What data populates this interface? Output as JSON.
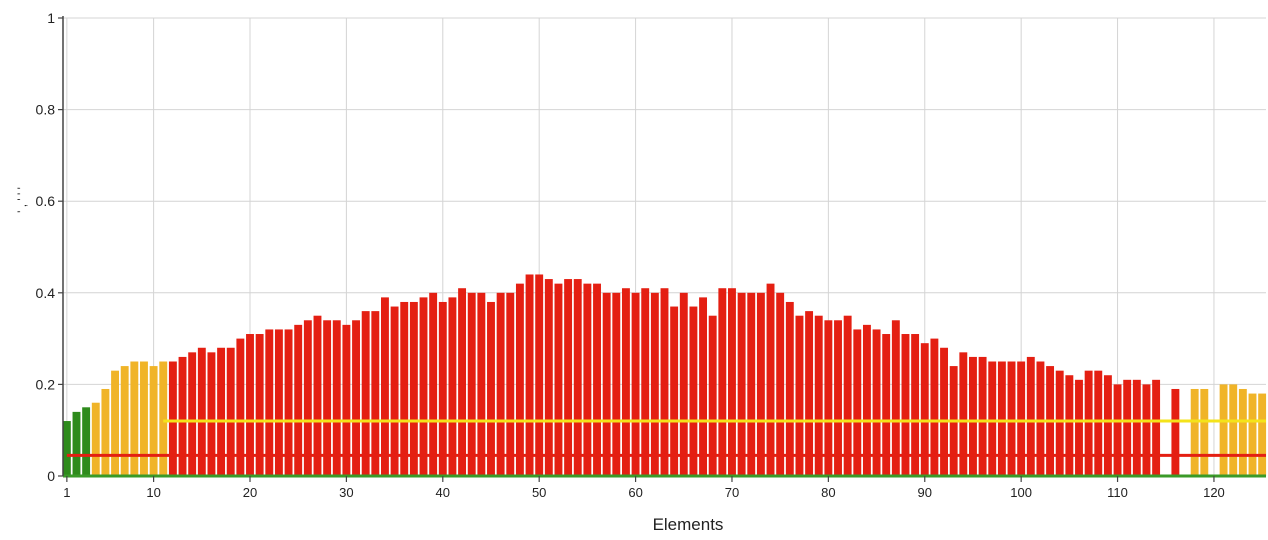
{
  "chart_data": {
    "type": "bar",
    "title": "",
    "xlabel": "Elements",
    "ylabel": "' , ' ' '",
    "ylim": [
      0,
      1
    ],
    "xlim": [
      0.6,
      125.4
    ],
    "yticks": [
      "0",
      "0.2",
      "0.4",
      "0.6",
      "0.8",
      "1"
    ],
    "ytick_values": [
      0,
      0.2,
      0.4,
      0.6,
      0.8,
      1
    ],
    "xticks": [
      "1",
      "10",
      "20",
      "30",
      "40",
      "50",
      "60",
      "70",
      "80",
      "90",
      "100",
      "110",
      "120"
    ],
    "xtick_values": [
      1,
      10,
      20,
      30,
      40,
      50,
      60,
      70,
      80,
      90,
      100,
      110,
      120
    ],
    "grid": true,
    "colors": {
      "green": "#2e8b1c",
      "orange": "#f0b428",
      "red": "#e41f12",
      "yellow_line": "#f4e31a",
      "red_line": "#e41f12",
      "baseline": "#3a9a28",
      "grid": "#d4d4d4"
    },
    "x": [
      1,
      2,
      3,
      4,
      5,
      6,
      7,
      8,
      9,
      10,
      11,
      12,
      13,
      14,
      15,
      16,
      17,
      18,
      19,
      20,
      21,
      22,
      23,
      24,
      25,
      26,
      27,
      28,
      29,
      30,
      31,
      32,
      33,
      34,
      35,
      36,
      37,
      38,
      39,
      40,
      41,
      42,
      43,
      44,
      45,
      46,
      47,
      48,
      49,
      50,
      51,
      52,
      53,
      54,
      55,
      56,
      57,
      58,
      59,
      60,
      61,
      62,
      63,
      64,
      65,
      66,
      67,
      68,
      69,
      70,
      71,
      72,
      73,
      74,
      75,
      76,
      77,
      78,
      79,
      80,
      81,
      82,
      83,
      84,
      85,
      86,
      87,
      88,
      89,
      90,
      91,
      92,
      93,
      94,
      95,
      96,
      97,
      98,
      99,
      100,
      101,
      102,
      103,
      104,
      105,
      106,
      107,
      108,
      109,
      110,
      111,
      112,
      113,
      114,
      115,
      116,
      117,
      118,
      119,
      120,
      121,
      122,
      123,
      124,
      125
    ],
    "values": [
      0.12,
      0.14,
      0.15,
      0.16,
      0.19,
      0.23,
      0.24,
      0.25,
      0.25,
      0.24,
      0.25,
      0.25,
      0.26,
      0.27,
      0.28,
      0.27,
      0.28,
      0.28,
      0.3,
      0.31,
      0.31,
      0.32,
      0.32,
      0.32,
      0.33,
      0.34,
      0.35,
      0.34,
      0.34,
      0.33,
      0.34,
      0.36,
      0.36,
      0.39,
      0.37,
      0.38,
      0.38,
      0.39,
      0.4,
      0.38,
      0.39,
      0.41,
      0.4,
      0.4,
      0.38,
      0.4,
      0.4,
      0.42,
      0.44,
      0.44,
      0.43,
      0.42,
      0.43,
      0.43,
      0.42,
      0.42,
      0.4,
      0.4,
      0.41,
      0.4,
      0.41,
      0.4,
      0.41,
      0.37,
      0.4,
      0.37,
      0.39,
      0.35,
      0.41,
      0.41,
      0.4,
      0.4,
      0.4,
      0.42,
      0.4,
      0.38,
      0.35,
      0.36,
      0.35,
      0.34,
      0.34,
      0.35,
      0.32,
      0.33,
      0.32,
      0.31,
      0.34,
      0.31,
      0.31,
      0.29,
      0.3,
      0.28,
      0.24,
      0.27,
      0.26,
      0.26,
      0.25,
      0.25,
      0.25,
      0.25,
      0.26,
      0.25,
      0.24,
      0.23,
      0.22,
      0.21,
      0.23,
      0.23,
      0.22,
      0.2,
      0.21,
      0.21,
      0.2,
      0.21,
      0.0,
      0.19,
      0.0,
      0.19,
      0.19,
      0.0,
      0.2,
      0.2,
      0.19,
      0.18,
      0.18
    ],
    "bar_colors": [
      "green",
      "green",
      "green",
      "orange",
      "orange",
      "orange",
      "orange",
      "orange",
      "orange",
      "orange",
      "orange",
      "red",
      "red",
      "red",
      "red",
      "red",
      "red",
      "red",
      "red",
      "red",
      "red",
      "red",
      "red",
      "red",
      "red",
      "red",
      "red",
      "red",
      "red",
      "red",
      "red",
      "red",
      "red",
      "red",
      "red",
      "red",
      "red",
      "red",
      "red",
      "red",
      "red",
      "red",
      "red",
      "red",
      "red",
      "red",
      "red",
      "red",
      "red",
      "red",
      "red",
      "red",
      "red",
      "red",
      "red",
      "red",
      "red",
      "red",
      "red",
      "red",
      "red",
      "red",
      "red",
      "red",
      "red",
      "red",
      "red",
      "red",
      "red",
      "red",
      "red",
      "red",
      "red",
      "red",
      "red",
      "red",
      "red",
      "red",
      "red",
      "red",
      "red",
      "red",
      "red",
      "red",
      "red",
      "red",
      "red",
      "red",
      "red",
      "red",
      "red",
      "red",
      "red",
      "red",
      "red",
      "red",
      "red",
      "red",
      "red",
      "red",
      "red",
      "red",
      "red",
      "red",
      "red",
      "red",
      "red",
      "red",
      "red",
      "red",
      "red",
      "red",
      "red",
      "red",
      "red",
      "red",
      "red",
      "orange",
      "orange",
      "orange",
      "orange",
      "orange",
      "orange",
      "orange",
      "orange"
    ],
    "threshold_lines": [
      {
        "color": "yellow_line",
        "y": 0.12,
        "x_start": 11,
        "x_end": 125.4
      },
      {
        "color": "red_line",
        "y": 0.045,
        "x_start": 1,
        "x_end": 125.4
      }
    ]
  }
}
